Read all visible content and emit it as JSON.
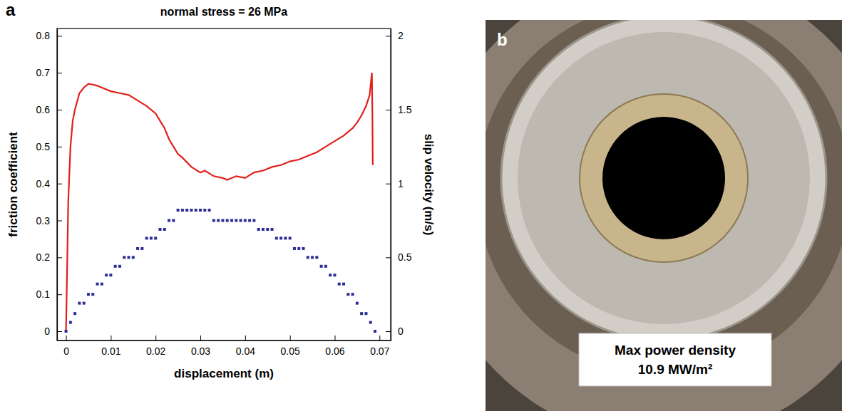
{
  "chart_data": {
    "type": "line",
    "panel": "a",
    "title": "normal stress = 26 MPa",
    "x_label": "displacement (m)",
    "y_label": "friction coefficient",
    "y2_label": "slip velocity (m/s)",
    "xlim": [
      -0.002,
      0.0725
    ],
    "xticks": [
      0,
      0.01,
      0.02,
      0.03,
      0.04,
      0.05,
      0.06,
      0.07
    ],
    "ylim": [
      -0.025,
      0.82
    ],
    "yticks": [
      0,
      0.1,
      0.2,
      0.3,
      0.4,
      0.5,
      0.6,
      0.7,
      0.8
    ],
    "y2lim": [
      -0.0625,
      2.05
    ],
    "y2ticks": [
      0,
      0.5,
      1,
      1.5,
      2
    ],
    "series": [
      {
        "type": "line",
        "color": "#e0201b",
        "line_style": "solid",
        "x": [
          0,
          0.0003,
          0.0005,
          0.001,
          0.0015,
          0.002,
          0.003,
          0.004,
          0.005,
          0.006,
          0.007,
          0.008,
          0.01,
          0.012,
          0.014,
          0.016,
          0.018,
          0.019,
          0.02,
          0.021,
          0.022,
          0.023,
          0.024,
          0.025,
          0.026,
          0.028,
          0.03,
          0.031,
          0.033,
          0.035,
          0.036,
          0.038,
          0.04,
          0.042,
          0.044,
          0.046,
          0.048,
          0.05,
          0.052,
          0.054,
          0.056,
          0.058,
          0.06,
          0.062,
          0.064,
          0.065,
          0.066,
          0.067,
          0.0678,
          0.0683,
          0.0684,
          0.0685
        ],
        "values": [
          0.0,
          0.2,
          0.35,
          0.5,
          0.57,
          0.6,
          0.645,
          0.66,
          0.67,
          0.668,
          0.665,
          0.66,
          0.65,
          0.645,
          0.64,
          0.625,
          0.61,
          0.6,
          0.59,
          0.57,
          0.55,
          0.52,
          0.5,
          0.48,
          0.47,
          0.445,
          0.43,
          0.435,
          0.42,
          0.415,
          0.41,
          0.42,
          0.415,
          0.43,
          0.435,
          0.445,
          0.45,
          0.46,
          0.465,
          0.475,
          0.485,
          0.5,
          0.515,
          0.53,
          0.55,
          0.565,
          0.585,
          0.61,
          0.64,
          0.7,
          0.6,
          0.45
        ]
      },
      {
        "type": "scatter",
        "axis": "y2",
        "color": "#2c2c95",
        "marker": "square",
        "x": [
          0,
          0.001,
          0.002,
          0.003,
          0.004,
          0.005,
          0.006,
          0.007,
          0.008,
          0.009,
          0.01,
          0.011,
          0.012,
          0.013,
          0.014,
          0.015,
          0.016,
          0.017,
          0.018,
          0.019,
          0.02,
          0.021,
          0.022,
          0.023,
          0.024,
          0.025,
          0.026,
          0.027,
          0.028,
          0.029,
          0.03,
          0.031,
          0.032,
          0.033,
          0.034,
          0.035,
          0.036,
          0.037,
          0.038,
          0.039,
          0.04,
          0.041,
          0.042,
          0.043,
          0.044,
          0.045,
          0.046,
          0.047,
          0.048,
          0.049,
          0.05,
          0.051,
          0.052,
          0.053,
          0.054,
          0.055,
          0.056,
          0.057,
          0.058,
          0.059,
          0.06,
          0.061,
          0.062,
          0.063,
          0.064,
          0.065,
          0.066,
          0.067,
          0.068,
          0.069
        ],
        "values": [
          0.0,
          0.06,
          0.12,
          0.19,
          0.19,
          0.25,
          0.25,
          0.32,
          0.32,
          0.38,
          0.38,
          0.44,
          0.44,
          0.5,
          0.5,
          0.5,
          0.56,
          0.56,
          0.63,
          0.63,
          0.63,
          0.69,
          0.69,
          0.75,
          0.75,
          0.82,
          0.82,
          0.82,
          0.82,
          0.82,
          0.82,
          0.82,
          0.82,
          0.75,
          0.75,
          0.75,
          0.75,
          0.75,
          0.75,
          0.75,
          0.75,
          0.75,
          0.75,
          0.69,
          0.69,
          0.69,
          0.69,
          0.63,
          0.63,
          0.63,
          0.63,
          0.56,
          0.56,
          0.56,
          0.5,
          0.5,
          0.5,
          0.44,
          0.44,
          0.38,
          0.38,
          0.32,
          0.32,
          0.25,
          0.25,
          0.19,
          0.12,
          0.12,
          0.06,
          0.0
        ]
      }
    ]
  },
  "photo": {
    "panel": "b",
    "caption": [
      "Max power density",
      "10.9 MW/m²"
    ]
  }
}
